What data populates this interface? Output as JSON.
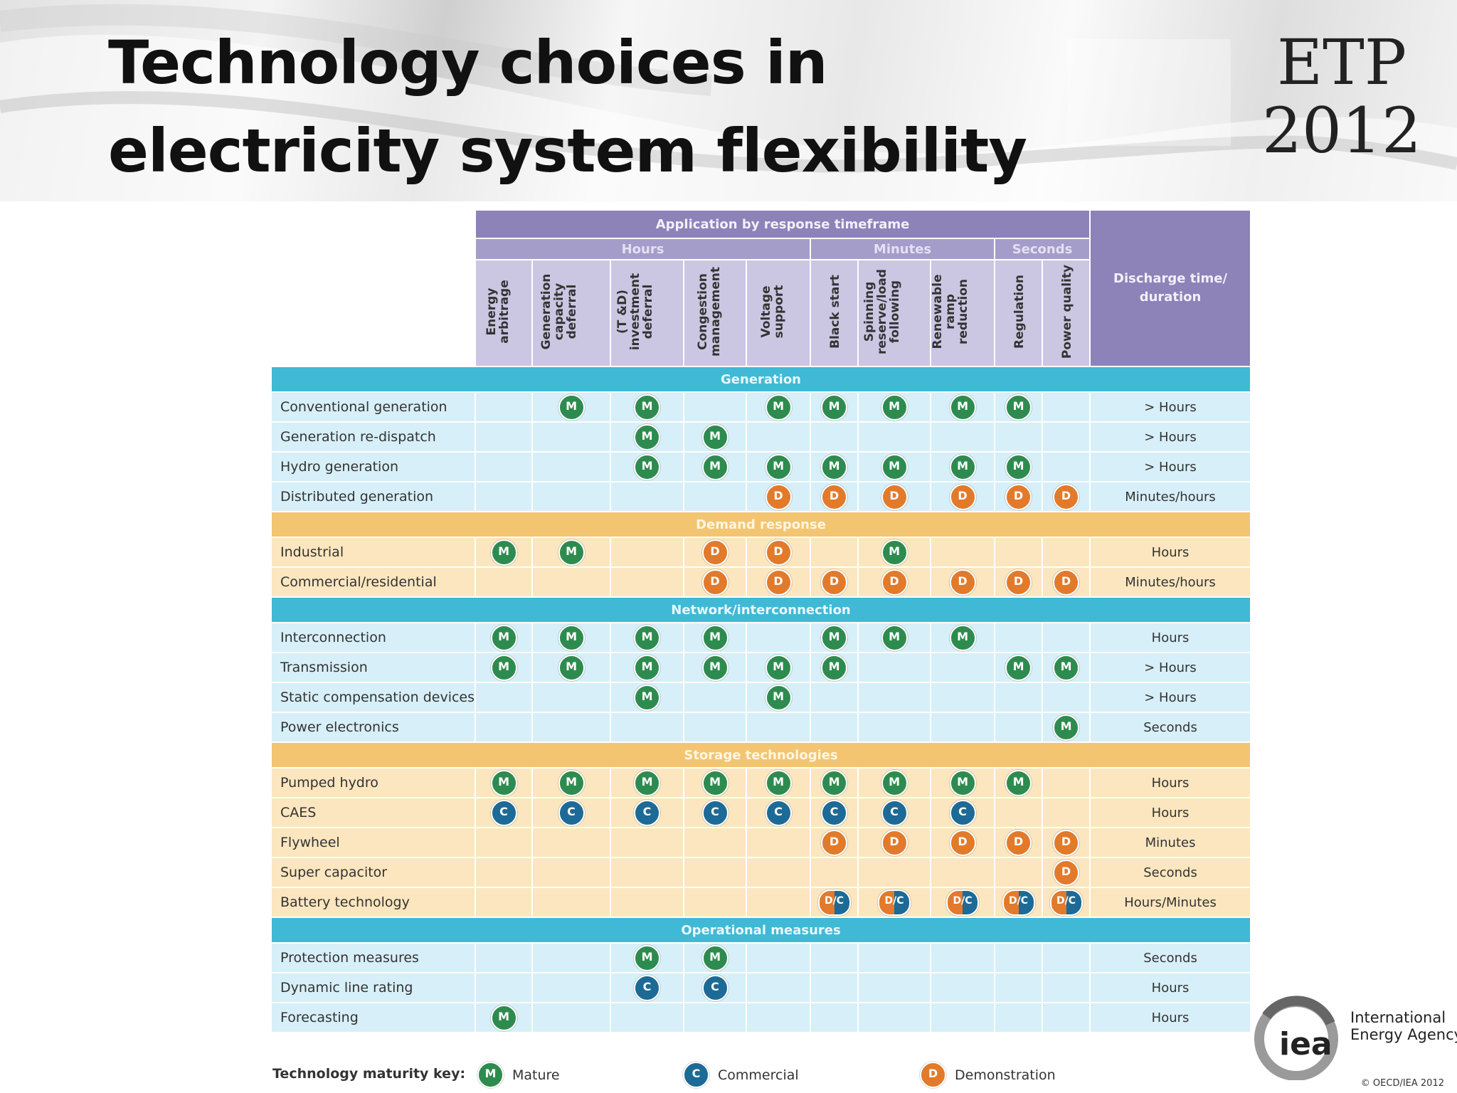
{
  "slide": {
    "title": "Technology choices in electricity system flexibility",
    "logo_top": "ETP",
    "logo_bottom": "2012"
  },
  "table": {
    "application_header": "Application by response timeframe",
    "groups": [
      {
        "label": "Hours",
        "span": 5
      },
      {
        "label": "Minutes",
        "span": 3
      },
      {
        "label": "Seconds",
        "span": 2
      }
    ],
    "columns": [
      "Energy\narbitrage",
      "Generation\ncapacity\ndeferral",
      "(T &D)\ninvestment\ndeferral",
      "Congestion\nmanagement",
      "Voltage\nsupport",
      "Black start",
      "Spinning\nreserve/load\nfollowing",
      "Renewable\nramp reduction",
      "Regulation",
      "Power quality"
    ],
    "discharge_header": "Discharge time/\nduration",
    "sections": [
      {
        "title": "Generation",
        "theme": "blue",
        "rows": [
          {
            "label": "Conventional generation",
            "cells": [
              "",
              "M",
              "M",
              "",
              "M",
              "M",
              "M",
              "M",
              "M",
              ""
            ],
            "duration": "> Hours"
          },
          {
            "label": "Generation re-dispatch",
            "cells": [
              "",
              "",
              "M",
              "M",
              "",
              "",
              "",
              "",
              "",
              ""
            ],
            "duration": "> Hours"
          },
          {
            "label": "Hydro generation",
            "cells": [
              "",
              "",
              "M",
              "M",
              "M",
              "M",
              "M",
              "M",
              "M",
              ""
            ],
            "duration": "> Hours"
          },
          {
            "label": "Distributed generation",
            "cells": [
              "",
              "",
              "",
              "",
              "D",
              "D",
              "D",
              "D",
              "D",
              "D"
            ],
            "duration": "Minutes/hours"
          }
        ]
      },
      {
        "title": "Demand response",
        "theme": "orange",
        "rows": [
          {
            "label": "Industrial",
            "cells": [
              "M",
              "M",
              "",
              "D",
              "D",
              "",
              "M",
              "",
              "",
              ""
            ],
            "duration": "Hours"
          },
          {
            "label": "Commercial/residential",
            "cells": [
              "",
              "",
              "",
              "D",
              "D",
              "D",
              "D",
              "D",
              "D",
              "D"
            ],
            "duration": "Minutes/hours"
          }
        ]
      },
      {
        "title": "Network/interconnection",
        "theme": "blue",
        "rows": [
          {
            "label": "Interconnection",
            "cells": [
              "M",
              "M",
              "M",
              "M",
              "",
              "M",
              "M",
              "M",
              "",
              ""
            ],
            "duration": "Hours"
          },
          {
            "label": "Transmission",
            "cells": [
              "M",
              "M",
              "M",
              "M",
              "M",
              "M",
              "",
              "",
              "M",
              "M"
            ],
            "duration": "> Hours"
          },
          {
            "label": "Static compensation devices",
            "cells": [
              "",
              "",
              "M",
              "",
              "M",
              "",
              "",
              "",
              "",
              ""
            ],
            "duration": "> Hours"
          },
          {
            "label": "Power electronics",
            "cells": [
              "",
              "",
              "",
              "",
              "",
              "",
              "",
              "",
              "",
              "M"
            ],
            "duration": "Seconds"
          }
        ]
      },
      {
        "title": "Storage technologies",
        "theme": "orange",
        "rows": [
          {
            "label": "Pumped hydro",
            "cells": [
              "M",
              "M",
              "M",
              "M",
              "M",
              "M",
              "M",
              "M",
              "M",
              ""
            ],
            "duration": "Hours"
          },
          {
            "label": "CAES",
            "cells": [
              "C",
              "C",
              "C",
              "C",
              "C",
              "C",
              "C",
              "C",
              "",
              ""
            ],
            "duration": "Hours"
          },
          {
            "label": "Flywheel",
            "cells": [
              "",
              "",
              "",
              "",
              "",
              "D",
              "D",
              "D",
              "D",
              "D"
            ],
            "duration": "Minutes"
          },
          {
            "label": "Super capacitor",
            "cells": [
              "",
              "",
              "",
              "",
              "",
              "",
              "",
              "",
              "",
              "D"
            ],
            "duration": "Seconds"
          },
          {
            "label": "Battery technology",
            "cells": [
              "",
              "",
              "",
              "",
              "",
              "D/C",
              "D/C",
              "D/C",
              "D/C",
              "D/C"
            ],
            "duration": "Hours/Minutes"
          }
        ]
      },
      {
        "title": "Operational measures",
        "theme": "blue",
        "rows": [
          {
            "label": "Protection measures",
            "cells": [
              "",
              "",
              "M",
              "M",
              "",
              "",
              "",
              "",
              "",
              ""
            ],
            "duration": "Seconds"
          },
          {
            "label": "Dynamic line rating",
            "cells": [
              "",
              "",
              "C",
              "C",
              "",
              "",
              "",
              "",
              "",
              ""
            ],
            "duration": "Hours"
          },
          {
            "label": "Forecasting",
            "cells": [
              "M",
              "",
              "",
              "",
              "",
              "",
              "",
              "",
              "",
              ""
            ],
            "duration": "Hours"
          }
        ]
      }
    ]
  },
  "key": {
    "label": "Technology maturity key:",
    "items": [
      {
        "code": "M",
        "text": "Mature"
      },
      {
        "code": "C",
        "text": "Commercial"
      },
      {
        "code": "D",
        "text": "Demonstration"
      }
    ]
  },
  "footer": {
    "org_line1": "International",
    "org_line2": "Energy Agency",
    "org_mark": "iea",
    "copyright": "© OECD/IEA 2012"
  },
  "colors": {
    "mature": "#2e8b4f",
    "commercial": "#1d6a96",
    "demonstration": "#e27a2b",
    "header_purple": "#8d83b8",
    "section_blue": "#3fb9d6",
    "section_orange": "#f3c571"
  }
}
